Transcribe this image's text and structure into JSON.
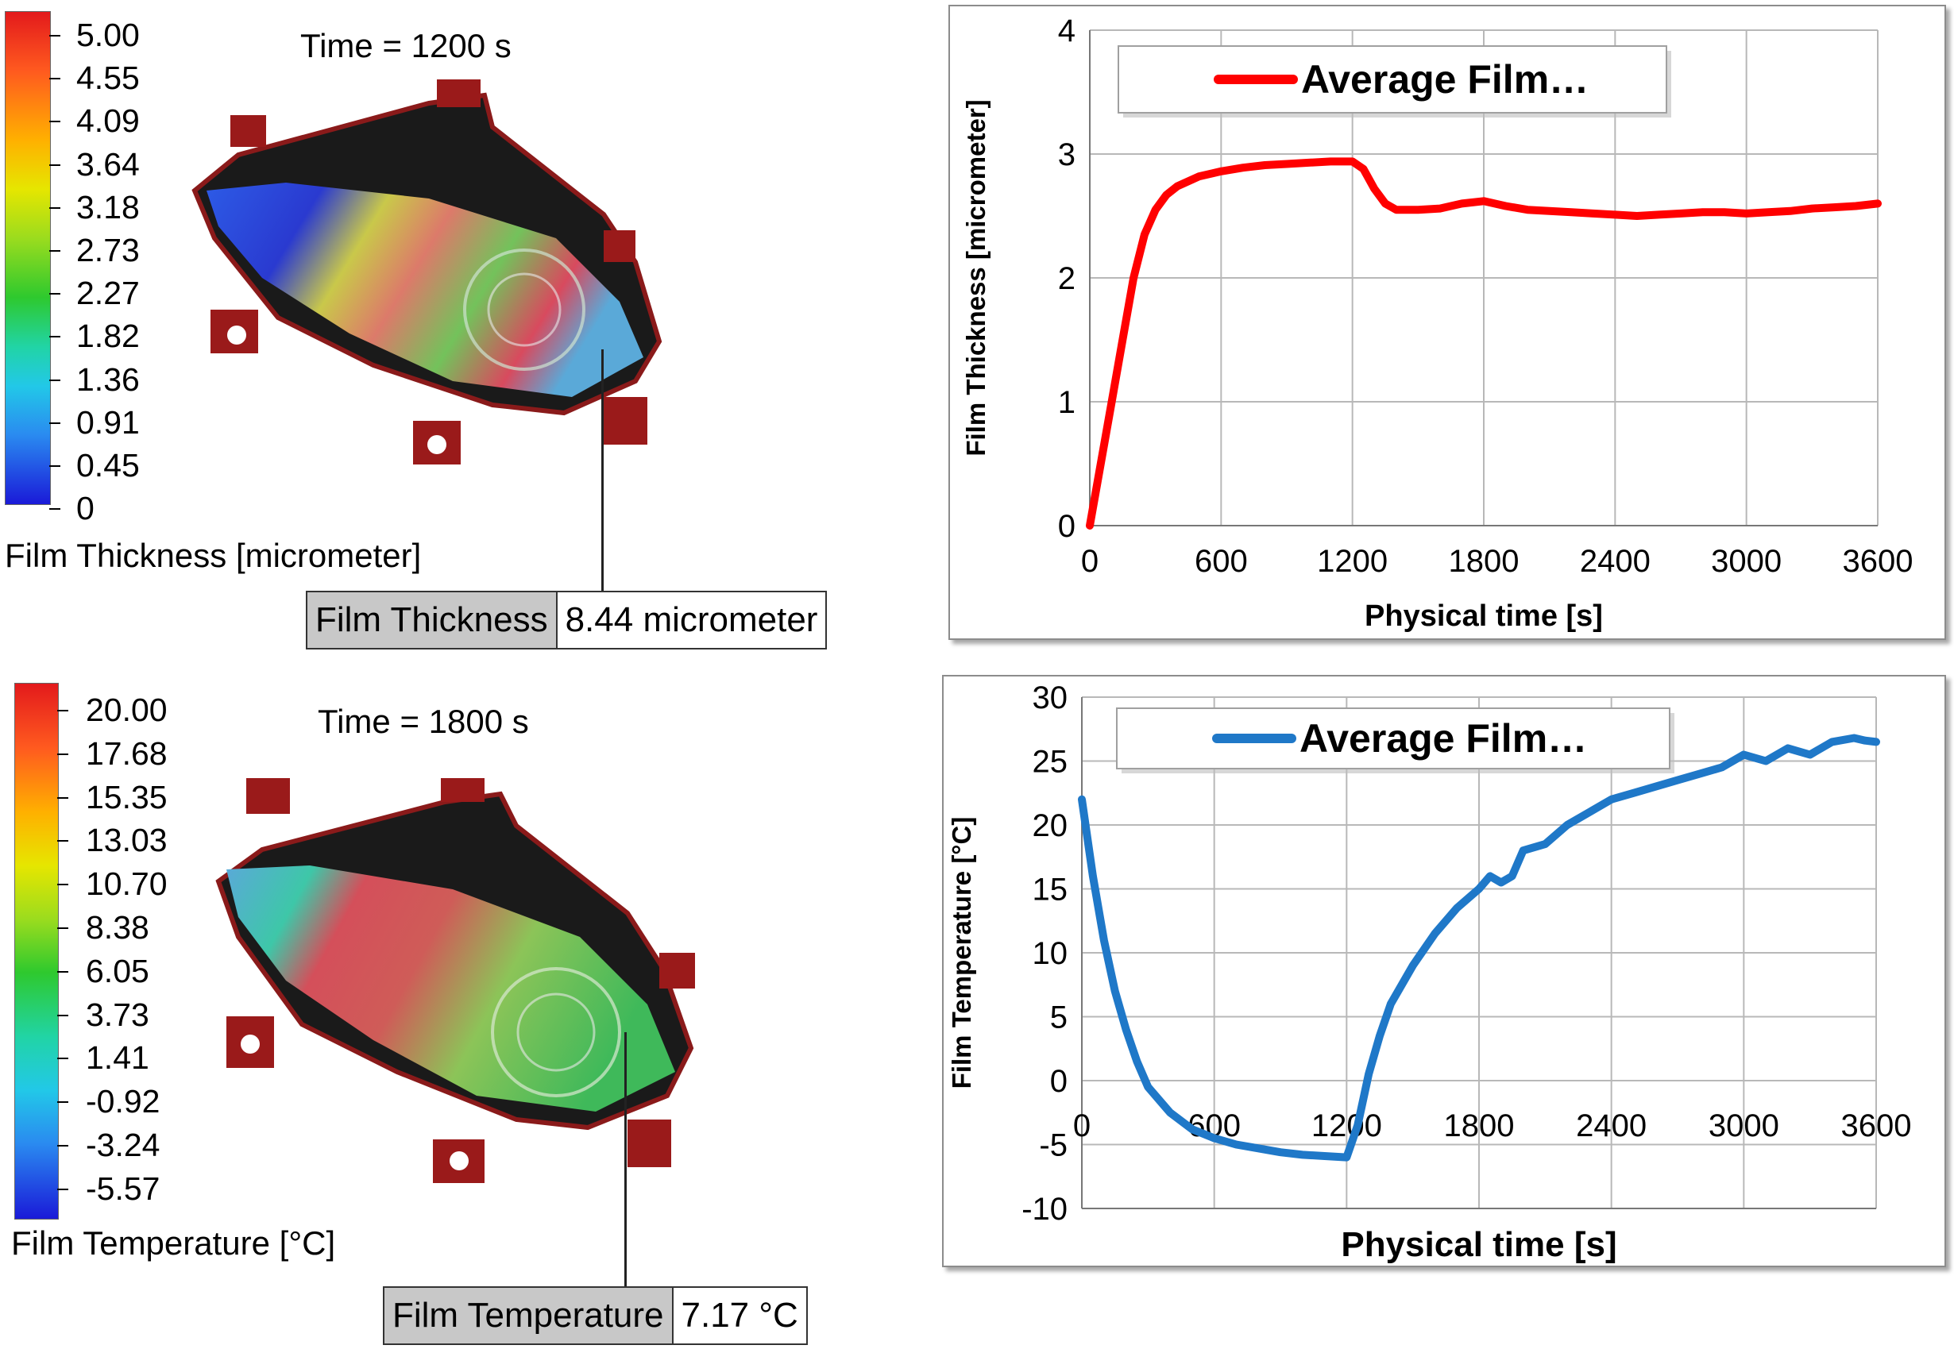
{
  "thickness_field": {
    "time_label": "Time = 1200 s",
    "legend_title": "Film Thickness [micrometer]",
    "ticks": [
      "5.00",
      "4.55",
      "4.09",
      "3.64",
      "3.18",
      "2.73",
      "2.27",
      "1.82",
      "1.36",
      "0.91",
      "0.45",
      "0"
    ],
    "probe_name": "Film Thickness",
    "probe_value": "8.44 micrometer"
  },
  "temperature_field": {
    "time_label": "Time = 1800 s",
    "legend_title": "Film Temperature [°C]",
    "ticks": [
      "20.00",
      "17.68",
      "15.35",
      "13.03",
      "10.70",
      "8.38",
      "6.05",
      "3.73",
      "1.41",
      "-0.92",
      "-3.24",
      "-5.57"
    ],
    "probe_name": "Film Temperature",
    "probe_value": "7.17 °C"
  },
  "chart_data": [
    {
      "type": "line",
      "xlabel": "Physical time [s]",
      "ylabel": "Film Thickness [micrometer]",
      "xlim": [
        0,
        3600
      ],
      "ylim": [
        0,
        4
      ],
      "xticks": [
        0,
        600,
        1200,
        1800,
        2400,
        3000,
        3600
      ],
      "yticks": [
        0,
        1,
        2,
        3,
        4
      ],
      "grid": true,
      "legend": "top",
      "color": "#ff0000",
      "series": [
        {
          "name": "Average Film…",
          "x": [
            0,
            50,
            100,
            150,
            200,
            250,
            300,
            350,
            400,
            450,
            500,
            600,
            700,
            800,
            900,
            1000,
            1100,
            1200,
            1250,
            1300,
            1350,
            1400,
            1500,
            1600,
            1700,
            1800,
            1900,
            2000,
            2100,
            2200,
            2300,
            2400,
            2500,
            2600,
            2700,
            2800,
            2900,
            3000,
            3100,
            3200,
            3300,
            3400,
            3500,
            3600
          ],
          "y": [
            0.0,
            0.5,
            1.0,
            1.5,
            2.0,
            2.35,
            2.55,
            2.67,
            2.74,
            2.78,
            2.82,
            2.86,
            2.89,
            2.91,
            2.92,
            2.93,
            2.94,
            2.94,
            2.88,
            2.72,
            2.6,
            2.55,
            2.55,
            2.56,
            2.6,
            2.62,
            2.58,
            2.55,
            2.54,
            2.53,
            2.52,
            2.51,
            2.5,
            2.51,
            2.52,
            2.53,
            2.53,
            2.52,
            2.53,
            2.54,
            2.56,
            2.57,
            2.58,
            2.6
          ]
        }
      ]
    },
    {
      "type": "line",
      "xlabel": "Physical time [s]",
      "ylabel": "Film Temperature [°C]",
      "xlim": [
        0,
        3600
      ],
      "ylim": [
        -10,
        30
      ],
      "xticks": [
        0,
        600,
        1200,
        1800,
        2400,
        3000,
        3600
      ],
      "yticks": [
        -10,
        -5,
        0,
        5,
        10,
        15,
        20,
        25,
        30
      ],
      "grid": true,
      "legend": "top",
      "color": "#1f78c8",
      "series": [
        {
          "name": "Average Film…",
          "x": [
            0,
            50,
            100,
            150,
            200,
            250,
            300,
            400,
            500,
            600,
            700,
            800,
            900,
            1000,
            1100,
            1200,
            1250,
            1300,
            1350,
            1400,
            1500,
            1600,
            1700,
            1800,
            1850,
            1900,
            1950,
            2000,
            2100,
            2200,
            2300,
            2400,
            2500,
            2600,
            2700,
            2800,
            2900,
            3000,
            3100,
            3200,
            3300,
            3400,
            3500,
            3550,
            3600
          ],
          "y": [
            22,
            16,
            11,
            7,
            4,
            1.5,
            -0.5,
            -2.5,
            -3.8,
            -4.5,
            -5.0,
            -5.3,
            -5.6,
            -5.8,
            -5.9,
            -6.0,
            -3.5,
            0.5,
            3.5,
            6,
            9,
            11.5,
            13.5,
            15,
            16,
            15.5,
            16,
            18,
            18.5,
            20,
            21,
            22,
            22.5,
            23,
            23.5,
            24,
            24.5,
            25.5,
            25,
            26,
            25.5,
            26.5,
            26.8,
            26.6,
            26.5
          ]
        }
      ]
    }
  ]
}
